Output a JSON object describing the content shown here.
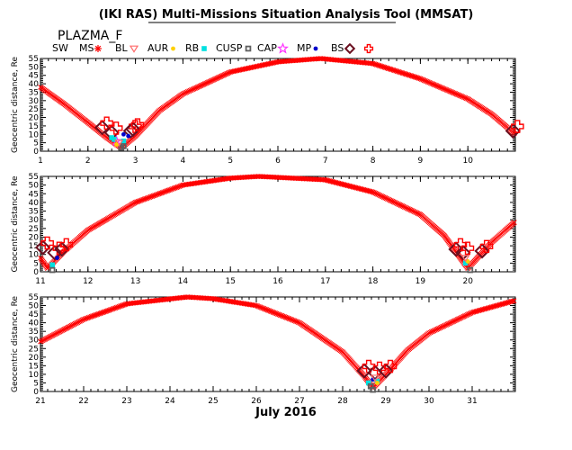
{
  "title": "(IKI RAS) Multi-Missions Situation Analysis Tool (MMSAT)",
  "mission": "PLAZMA_F",
  "xlabel": "July 2016",
  "colors": {
    "orbit": "#ff0000",
    "axes": "#000000",
    "SW": "#ff0000",
    "MS": "#ff0000",
    "BL": "#ff6a6a",
    "AUR": "#ffd000",
    "RB": "#00e0e0",
    "CUSP": "#606060",
    "CAP": "#ff33ff",
    "MP": "#0000cc",
    "BS": "#6b1020"
  },
  "legend": [
    {
      "label": "SW",
      "symbol": "none",
      "icon": "none"
    },
    {
      "label": "MS",
      "symbol": "asterisk",
      "icon": "red-asterisk-icon"
    },
    {
      "label": "BL",
      "symbol": "triangle-down",
      "icon": "triangle-down-icon"
    },
    {
      "label": "AUR",
      "symbol": "dot",
      "icon": "yellow-dot-icon"
    },
    {
      "label": "RB",
      "symbol": "square-filled",
      "icon": "cyan-square-icon"
    },
    {
      "label": "CUSP",
      "symbol": "square-open",
      "icon": "gray-square-icon"
    },
    {
      "label": "CAP",
      "symbol": "star",
      "icon": "magenta-star-icon"
    },
    {
      "label": "MP",
      "symbol": "dot",
      "icon": "blue-dot-icon"
    },
    {
      "label": "BS",
      "symbol": "diamond",
      "icon": "diamond-icon"
    },
    {
      "label": "",
      "symbol": "cross",
      "icon": "red-cross-icon"
    }
  ],
  "chart_data": [
    {
      "type": "line",
      "ylabel": "Geocentric distance, Re",
      "xlim": [
        1,
        11
      ],
      "ylim": [
        0,
        55
      ],
      "x_ticks": [
        1,
        2,
        3,
        4,
        5,
        6,
        7,
        8,
        9,
        10
      ],
      "y_ticks": [
        0,
        5,
        10,
        15,
        20,
        25,
        30,
        35,
        40,
        45,
        50,
        55
      ],
      "grid": false,
      "perigee_days": [
        2.7,
        11.0
      ],
      "apogee_day": 6.9,
      "series": [
        {
          "points": [
            [
              1.0,
              38
            ],
            [
              1.5,
              28
            ],
            [
              2.0,
              17
            ],
            [
              2.4,
              8
            ],
            [
              2.7,
              2
            ],
            [
              3.0,
              9
            ],
            [
              3.5,
              24
            ],
            [
              4.0,
              34
            ],
            [
              5.0,
              47
            ],
            [
              6.0,
              53
            ],
            [
              6.9,
              55
            ],
            [
              8.0,
              52
            ],
            [
              9.0,
              43
            ],
            [
              10.0,
              31
            ],
            [
              10.5,
              22
            ],
            [
              11.0,
              10
            ]
          ]
        }
      ],
      "region_markers": [
        {
          "region": "BS",
          "day": 2.3,
          "r": 14
        },
        {
          "region": "BS",
          "day": 2.5,
          "r": 11
        },
        {
          "region": "BS",
          "day": 2.9,
          "r": 12
        },
        {
          "region": "BS",
          "day": 2.95,
          "r": 13
        },
        {
          "region": "BS",
          "day": 10.95,
          "r": 12
        },
        {
          "region": "MP",
          "day": 2.75,
          "r": 10
        },
        {
          "region": "MP",
          "day": 2.85,
          "r": 9
        },
        {
          "region": "CAP",
          "day": 2.6,
          "r": 6
        },
        {
          "region": "RB",
          "day": 2.55,
          "r": 7
        },
        {
          "region": "RB",
          "day": 2.5,
          "r": 8
        },
        {
          "region": "RB",
          "day": 2.75,
          "r": 6
        },
        {
          "region": "CUSP",
          "day": 2.7,
          "r": 2
        },
        {
          "region": "CUSP",
          "day": 2.75,
          "r": 3
        },
        {
          "region": "BL",
          "day": 2.65,
          "r": 5
        },
        {
          "region": "AUR",
          "day": 2.6,
          "r": 4
        }
      ]
    },
    {
      "type": "line",
      "ylabel": "Geocentric distance, Re",
      "xlim": [
        11,
        21
      ],
      "ylim": [
        0,
        55
      ],
      "x_ticks": [
        11,
        12,
        13,
        14,
        15,
        16,
        17,
        18,
        19,
        20
      ],
      "y_ticks": [
        0,
        5,
        10,
        15,
        20,
        25,
        30,
        35,
        40,
        45,
        50,
        55
      ],
      "grid": false,
      "perigee_days": [
        11.15,
        20.0
      ],
      "apogee_day": 15.6,
      "series": [
        {
          "points": [
            [
              11.0,
              8
            ],
            [
              11.15,
              2
            ],
            [
              11.5,
              12
            ],
            [
              12.0,
              24
            ],
            [
              13.0,
              40
            ],
            [
              14.0,
              50
            ],
            [
              15.0,
              54
            ],
            [
              15.6,
              55
            ],
            [
              17.0,
              53
            ],
            [
              18.0,
              46
            ],
            [
              19.0,
              33
            ],
            [
              19.5,
              21
            ],
            [
              20.0,
              2
            ],
            [
              20.5,
              17
            ],
            [
              21.0,
              29
            ]
          ]
        }
      ],
      "region_markers": [
        {
          "region": "BS",
          "day": 11.05,
          "r": 14
        },
        {
          "region": "BS",
          "day": 11.3,
          "r": 11
        },
        {
          "region": "BS",
          "day": 11.45,
          "r": 13
        },
        {
          "region": "BS",
          "day": 19.75,
          "r": 13
        },
        {
          "region": "BS",
          "day": 19.9,
          "r": 11
        },
        {
          "region": "BS",
          "day": 20.3,
          "r": 12
        },
        {
          "region": "RB",
          "day": 11.25,
          "r": 4
        },
        {
          "region": "RB",
          "day": 19.95,
          "r": 5
        },
        {
          "region": "CUSP",
          "day": 11.25,
          "r": 1
        },
        {
          "region": "CUSP",
          "day": 20.05,
          "r": 1
        },
        {
          "region": "MP",
          "day": 11.35,
          "r": 8
        },
        {
          "region": "AUR",
          "day": 20.0,
          "r": 6
        },
        {
          "region": "BL",
          "day": 19.95,
          "r": 8
        }
      ]
    },
    {
      "type": "line",
      "ylabel": "Geocentric distance, Re",
      "xlim": [
        21,
        32
      ],
      "ylim": [
        0,
        55
      ],
      "x_ticks": [
        21,
        22,
        23,
        24,
        25,
        26,
        27,
        28,
        29,
        30,
        31
      ],
      "y_ticks": [
        0,
        5,
        10,
        15,
        20,
        25,
        30,
        35,
        40,
        45,
        50,
        55
      ],
      "grid": false,
      "perigee_days": [
        28.7
      ],
      "apogee_day": 24.4,
      "series": [
        {
          "points": [
            [
              21.0,
              29
            ],
            [
              22.0,
              42
            ],
            [
              23.0,
              51
            ],
            [
              24.4,
              55
            ],
            [
              25.0,
              54
            ],
            [
              26.0,
              50
            ],
            [
              27.0,
              40
            ],
            [
              28.0,
              23
            ],
            [
              28.5,
              9
            ],
            [
              28.7,
              2
            ],
            [
              29.0,
              10
            ],
            [
              29.5,
              24
            ],
            [
              30.0,
              34
            ],
            [
              31.0,
              46
            ],
            [
              32.0,
              53
            ]
          ]
        }
      ],
      "region_markers": [
        {
          "region": "BS",
          "day": 28.5,
          "r": 12
        },
        {
          "region": "BS",
          "day": 28.75,
          "r": 11
        },
        {
          "region": "BS",
          "day": 29.0,
          "r": 12
        },
        {
          "region": "MP",
          "day": 28.7,
          "r": 7
        },
        {
          "region": "RB",
          "day": 28.6,
          "r": 5
        },
        {
          "region": "RB",
          "day": 28.8,
          "r": 6
        },
        {
          "region": "CUSP",
          "day": 28.65,
          "r": 3
        },
        {
          "region": "CUSP",
          "day": 28.7,
          "r": 1
        },
        {
          "region": "BL",
          "day": 28.75,
          "r": 8
        },
        {
          "region": "AUR",
          "day": 28.8,
          "r": 5
        }
      ]
    }
  ]
}
